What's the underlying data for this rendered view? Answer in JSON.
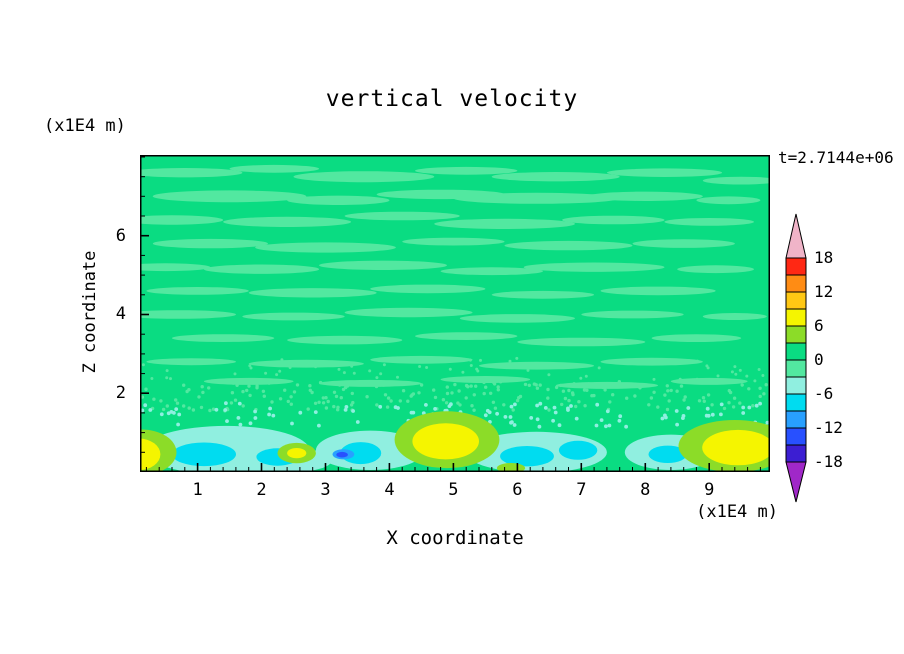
{
  "chart_data": {
    "type": "contour",
    "title": "vertical velocity",
    "time_label": "t=2.7144e+06",
    "axes": {
      "x": {
        "label": "X coordinate",
        "unit": "(x1E4 m)",
        "ticks": [
          1,
          2,
          3,
          4,
          5,
          6,
          7,
          8,
          9
        ],
        "range": [
          0.1,
          9.95
        ],
        "minor_step": 0.2
      },
      "y": {
        "label": "Z coordinate",
        "unit": "(x1E4 m)",
        "ticks": [
          2,
          4,
          6
        ],
        "range": [
          0,
          8.05
        ],
        "minor_step": 0.5
      }
    },
    "colorbar": {
      "labels": [
        18,
        12,
        6,
        0,
        -6,
        -12,
        -18
      ],
      "levels": [
        -18,
        -15,
        -12,
        -9,
        -6,
        -3,
        0,
        3,
        6,
        9,
        12,
        15,
        18
      ],
      "colors_low_to_high": [
        "#A028C8",
        "#3C1ED2",
        "#2850FF",
        "#28A0FF",
        "#00DCF0",
        "#90EFE0",
        "#52E8A0",
        "#0ADC82",
        "#8CDC28",
        "#F5F500",
        "#FFC814",
        "#FF8C14",
        "#FF2814",
        "#F0B4C8"
      ],
      "under_arrow": true,
      "over_arrow": true
    },
    "background_color_index": 7,
    "streak_color_index": 6,
    "notes": "Mostly near-zero (green) vertical velocity field with wavy light-green streaks aloft; near the surface (z<1.5e4 m) updraft cells (yellow, +6 to +9) near x=0, 2.6, 4.9, 9.4 and downdraft patches (pale cyan/cyan, -3 to -9) between them; strongest downdraft dot (about -10) near x=3.3.",
    "streaks": [
      [
        0.8,
        7.6,
        0.9,
        0.12
      ],
      [
        2.2,
        7.7,
        0.7,
        0.1
      ],
      [
        3.6,
        7.5,
        1.1,
        0.14
      ],
      [
        5.2,
        7.65,
        0.8,
        0.1
      ],
      [
        6.6,
        7.5,
        1.0,
        0.12
      ],
      [
        8.3,
        7.6,
        0.9,
        0.11
      ],
      [
        9.5,
        7.4,
        0.6,
        0.1
      ],
      [
        1.5,
        7.0,
        1.2,
        0.15
      ],
      [
        3.2,
        6.9,
        0.8,
        0.12
      ],
      [
        4.8,
        7.05,
        1.0,
        0.12
      ],
      [
        6.3,
        6.95,
        1.3,
        0.14
      ],
      [
        8.0,
        7.0,
        0.9,
        0.12
      ],
      [
        9.3,
        6.9,
        0.5,
        0.1
      ],
      [
        0.6,
        6.4,
        0.8,
        0.12
      ],
      [
        2.4,
        6.35,
        1.0,
        0.13
      ],
      [
        4.2,
        6.5,
        0.9,
        0.11
      ],
      [
        5.8,
        6.3,
        1.1,
        0.13
      ],
      [
        7.5,
        6.4,
        0.8,
        0.11
      ],
      [
        9.0,
        6.35,
        0.7,
        0.1
      ],
      [
        1.2,
        5.8,
        0.9,
        0.12
      ],
      [
        3.0,
        5.7,
        1.1,
        0.13
      ],
      [
        5.0,
        5.85,
        0.8,
        0.1
      ],
      [
        6.8,
        5.75,
        1.0,
        0.12
      ],
      [
        8.6,
        5.8,
        0.8,
        0.11
      ],
      [
        0.5,
        5.2,
        0.7,
        0.1
      ],
      [
        2.0,
        5.15,
        0.9,
        0.12
      ],
      [
        3.9,
        5.25,
        1.0,
        0.12
      ],
      [
        5.6,
        5.1,
        0.8,
        0.1
      ],
      [
        7.2,
        5.2,
        1.1,
        0.12
      ],
      [
        9.1,
        5.15,
        0.6,
        0.1
      ],
      [
        1.0,
        4.6,
        0.8,
        0.1
      ],
      [
        2.8,
        4.55,
        1.0,
        0.12
      ],
      [
        4.6,
        4.65,
        0.9,
        0.11
      ],
      [
        6.4,
        4.5,
        0.8,
        0.1
      ],
      [
        8.2,
        4.6,
        0.9,
        0.11
      ],
      [
        0.7,
        4.0,
        0.9,
        0.11
      ],
      [
        2.5,
        3.95,
        0.8,
        0.1
      ],
      [
        4.3,
        4.05,
        1.0,
        0.12
      ],
      [
        6.0,
        3.9,
        0.9,
        0.11
      ],
      [
        7.8,
        4.0,
        0.8,
        0.1
      ],
      [
        9.4,
        3.95,
        0.5,
        0.09
      ],
      [
        1.4,
        3.4,
        0.8,
        0.1
      ],
      [
        3.3,
        3.35,
        0.9,
        0.11
      ],
      [
        5.2,
        3.45,
        0.8,
        0.1
      ],
      [
        7.0,
        3.3,
        1.0,
        0.11
      ],
      [
        8.8,
        3.4,
        0.7,
        0.1
      ],
      [
        0.9,
        2.8,
        0.7,
        0.09
      ],
      [
        2.7,
        2.75,
        0.9,
        0.1
      ],
      [
        4.5,
        2.85,
        0.8,
        0.1
      ],
      [
        6.3,
        2.7,
        0.9,
        0.1
      ],
      [
        8.1,
        2.8,
        0.8,
        0.1
      ],
      [
        1.8,
        2.3,
        0.7,
        0.09
      ],
      [
        3.7,
        2.25,
        0.8,
        0.09
      ],
      [
        5.5,
        2.35,
        0.7,
        0.09
      ],
      [
        7.4,
        2.2,
        0.8,
        0.09
      ],
      [
        9.0,
        2.3,
        0.6,
        0.09
      ]
    ],
    "blobs": [
      [
        1.45,
        0.55,
        1.3,
        0.62,
        5
      ],
      [
        3.7,
        0.55,
        0.85,
        0.5,
        5
      ],
      [
        6.3,
        0.5,
        1.1,
        0.52,
        5
      ],
      [
        8.4,
        0.5,
        0.72,
        0.45,
        5
      ],
      [
        2.5,
        0.3,
        0.6,
        0.3,
        5
      ],
      [
        1.1,
        0.45,
        0.5,
        0.3,
        4
      ],
      [
        2.25,
        0.38,
        0.33,
        0.22,
        4
      ],
      [
        3.55,
        0.48,
        0.32,
        0.28,
        4
      ],
      [
        6.15,
        0.4,
        0.42,
        0.26,
        4
      ],
      [
        6.95,
        0.55,
        0.3,
        0.24,
        4
      ],
      [
        8.35,
        0.45,
        0.3,
        0.22,
        4
      ],
      [
        3.28,
        0.45,
        0.17,
        0.13,
        3
      ],
      [
        3.26,
        0.44,
        0.09,
        0.07,
        2
      ],
      [
        0.12,
        0.5,
        0.55,
        0.58,
        8
      ],
      [
        0.08,
        0.45,
        0.34,
        0.4,
        9
      ],
      [
        2.55,
        0.48,
        0.3,
        0.26,
        8
      ],
      [
        2.55,
        0.48,
        0.15,
        0.13,
        9
      ],
      [
        4.9,
        0.82,
        0.82,
        0.72,
        8
      ],
      [
        4.88,
        0.78,
        0.52,
        0.46,
        9
      ],
      [
        9.4,
        0.66,
        0.88,
        0.66,
        8
      ],
      [
        9.45,
        0.62,
        0.56,
        0.45,
        9
      ],
      [
        5.9,
        0.1,
        0.22,
        0.13,
        8
      ]
    ],
    "speckle": {
      "seed": 42,
      "bands": [
        {
          "y0": 1.55,
          "y1": 2.3,
          "count": 200,
          "ci": 6,
          "r": 1.7
        },
        {
          "y0": 1.15,
          "y1": 1.75,
          "count": 110,
          "ci": 5,
          "r": 1.9
        },
        {
          "y0": 2.3,
          "y1": 2.9,
          "count": 60,
          "ci": 6,
          "r": 1.5
        }
      ]
    }
  }
}
